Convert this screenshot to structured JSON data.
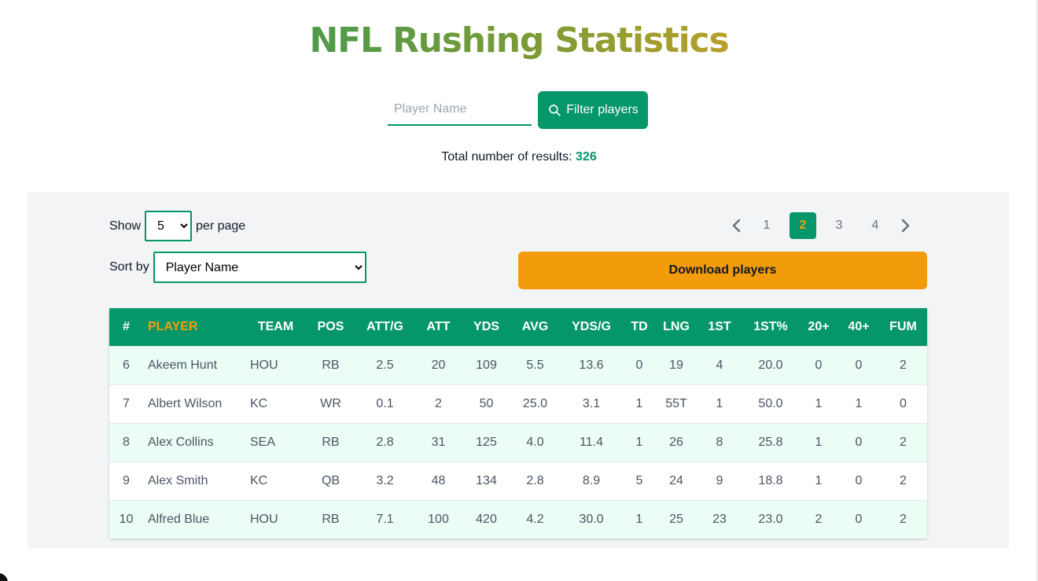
{
  "title": "NFL Rushing Statistics",
  "search": {
    "placeholder": "Player Name",
    "value": ""
  },
  "filter_button": {
    "label": "Filter players",
    "icon": "search-icon"
  },
  "results": {
    "label": "Total number of results:",
    "count": "326"
  },
  "show": {
    "label_before": "Show",
    "selected": "5",
    "label_after": "per page"
  },
  "sort": {
    "label": "Sort by",
    "selected": "Player Name"
  },
  "pagination": {
    "prev_icon": "chevron-left-icon",
    "next_icon": "chevron-right-icon",
    "pages": [
      "1",
      "2",
      "3",
      "4"
    ],
    "current": "2"
  },
  "download_button": {
    "label": "Download players"
  },
  "colors": {
    "accent": "#059669",
    "highlight": "#f59e0b",
    "download": "#f39c0b",
    "row_alt": "#ecfdf5",
    "panel": "#f3f4f6"
  },
  "table": {
    "headers": [
      "#",
      "PLAYER",
      "TEAM",
      "POS",
      "ATT/G",
      "ATT",
      "YDS",
      "AVG",
      "YDS/G",
      "TD",
      "LNG",
      "1ST",
      "1ST%",
      "20+",
      "40+",
      "FUM"
    ],
    "rows": [
      [
        "6",
        "Akeem Hunt",
        "HOU",
        "RB",
        "2.5",
        "20",
        "109",
        "5.5",
        "13.6",
        "0",
        "19",
        "4",
        "20.0",
        "0",
        "0",
        "2"
      ],
      [
        "7",
        "Albert Wilson",
        "KC",
        "WR",
        "0.1",
        "2",
        "50",
        "25.0",
        "3.1",
        "1",
        "55T",
        "1",
        "50.0",
        "1",
        "1",
        "0"
      ],
      [
        "8",
        "Alex Collins",
        "SEA",
        "RB",
        "2.8",
        "31",
        "125",
        "4.0",
        "11.4",
        "1",
        "26",
        "8",
        "25.8",
        "1",
        "0",
        "2"
      ],
      [
        "9",
        "Alex Smith",
        "KC",
        "QB",
        "3.2",
        "48",
        "134",
        "2.8",
        "8.9",
        "5",
        "24",
        "9",
        "18.8",
        "1",
        "0",
        "2"
      ],
      [
        "10",
        "Alfred Blue",
        "HOU",
        "RB",
        "7.1",
        "100",
        "420",
        "4.2",
        "30.0",
        "1",
        "25",
        "23",
        "23.0",
        "2",
        "0",
        "2"
      ]
    ]
  }
}
